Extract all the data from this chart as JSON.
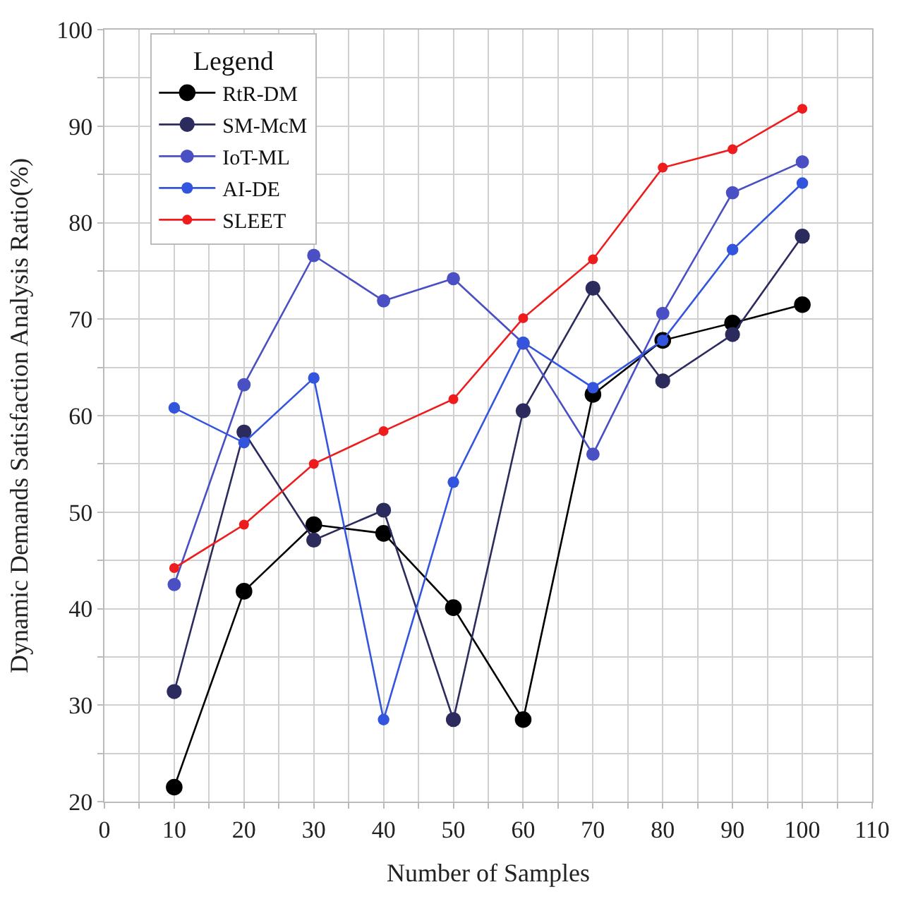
{
  "chart_data": {
    "type": "line",
    "xlabel": "Number of Samples",
    "ylabel": "Dynamic Demands Satisfaction Analysis Ratio(%)",
    "legend_title": "Legend",
    "legend": "top left",
    "grid": true,
    "marker": "circle",
    "line_style": "solid",
    "x": [
      10,
      20,
      30,
      40,
      50,
      60,
      70,
      80,
      90,
      100
    ],
    "xlim": [
      0,
      110
    ],
    "ylim": [
      20,
      100
    ],
    "xticks": [
      0,
      {
        "value": 5,
        "label": null
      },
      10,
      {
        "value": 15,
        "label": null
      },
      20,
      {
        "value": 25,
        "label": null
      },
      30,
      {
        "value": 35,
        "label": null
      },
      40,
      {
        "value": 45,
        "label": null
      },
      50,
      {
        "value": 55,
        "label": null
      },
      60,
      {
        "value": 65,
        "label": null
      },
      70,
      {
        "value": 75,
        "label": null
      },
      80,
      {
        "value": 85,
        "label": null
      },
      90,
      {
        "value": 95,
        "label": null
      },
      100,
      {
        "value": 105,
        "label": null
      },
      110
    ],
    "yticks": [
      20,
      {
        "value": 25,
        "label": null
      },
      30,
      {
        "value": 35,
        "label": null
      },
      40,
      {
        "value": 45,
        "label": null
      },
      50,
      {
        "value": 55,
        "label": null
      },
      60,
      {
        "value": 65,
        "label": null
      },
      70,
      {
        "value": 75,
        "label": null
      },
      80,
      {
        "value": 85,
        "label": null
      },
      90,
      {
        "value": 95,
        "label": null
      },
      100
    ],
    "series": [
      {
        "name": "RtR-DM",
        "color": "#000000",
        "values": [
          21.5,
          41.8,
          48.7,
          47.8,
          40.1,
          28.5,
          62.2,
          67.8,
          69.6,
          71.5
        ]
      },
      {
        "name": "SM-McM",
        "color": "#2b2b5e",
        "values": [
          31.4,
          58.3,
          47.1,
          50.2,
          28.5,
          60.5,
          73.2,
          63.6,
          68.4,
          78.6
        ]
      },
      {
        "name": "IoT-ML",
        "color": "#4a4fc4",
        "values": [
          42.5,
          63.2,
          76.6,
          71.9,
          74.2,
          67.5,
          56.0,
          70.6,
          83.1,
          86.3
        ]
      },
      {
        "name": "AI-DE",
        "color": "#3355dd",
        "values": [
          60.8,
          57.2,
          63.9,
          28.5,
          53.1,
          67.6,
          62.9,
          67.8,
          77.2,
          84.1
        ]
      },
      {
        "name": "SLEET",
        "color": "#ee1c1c",
        "values": [
          44.2,
          48.7,
          55.0,
          58.4,
          61.7,
          70.1,
          76.2,
          85.7,
          87.6,
          91.8
        ]
      }
    ]
  }
}
